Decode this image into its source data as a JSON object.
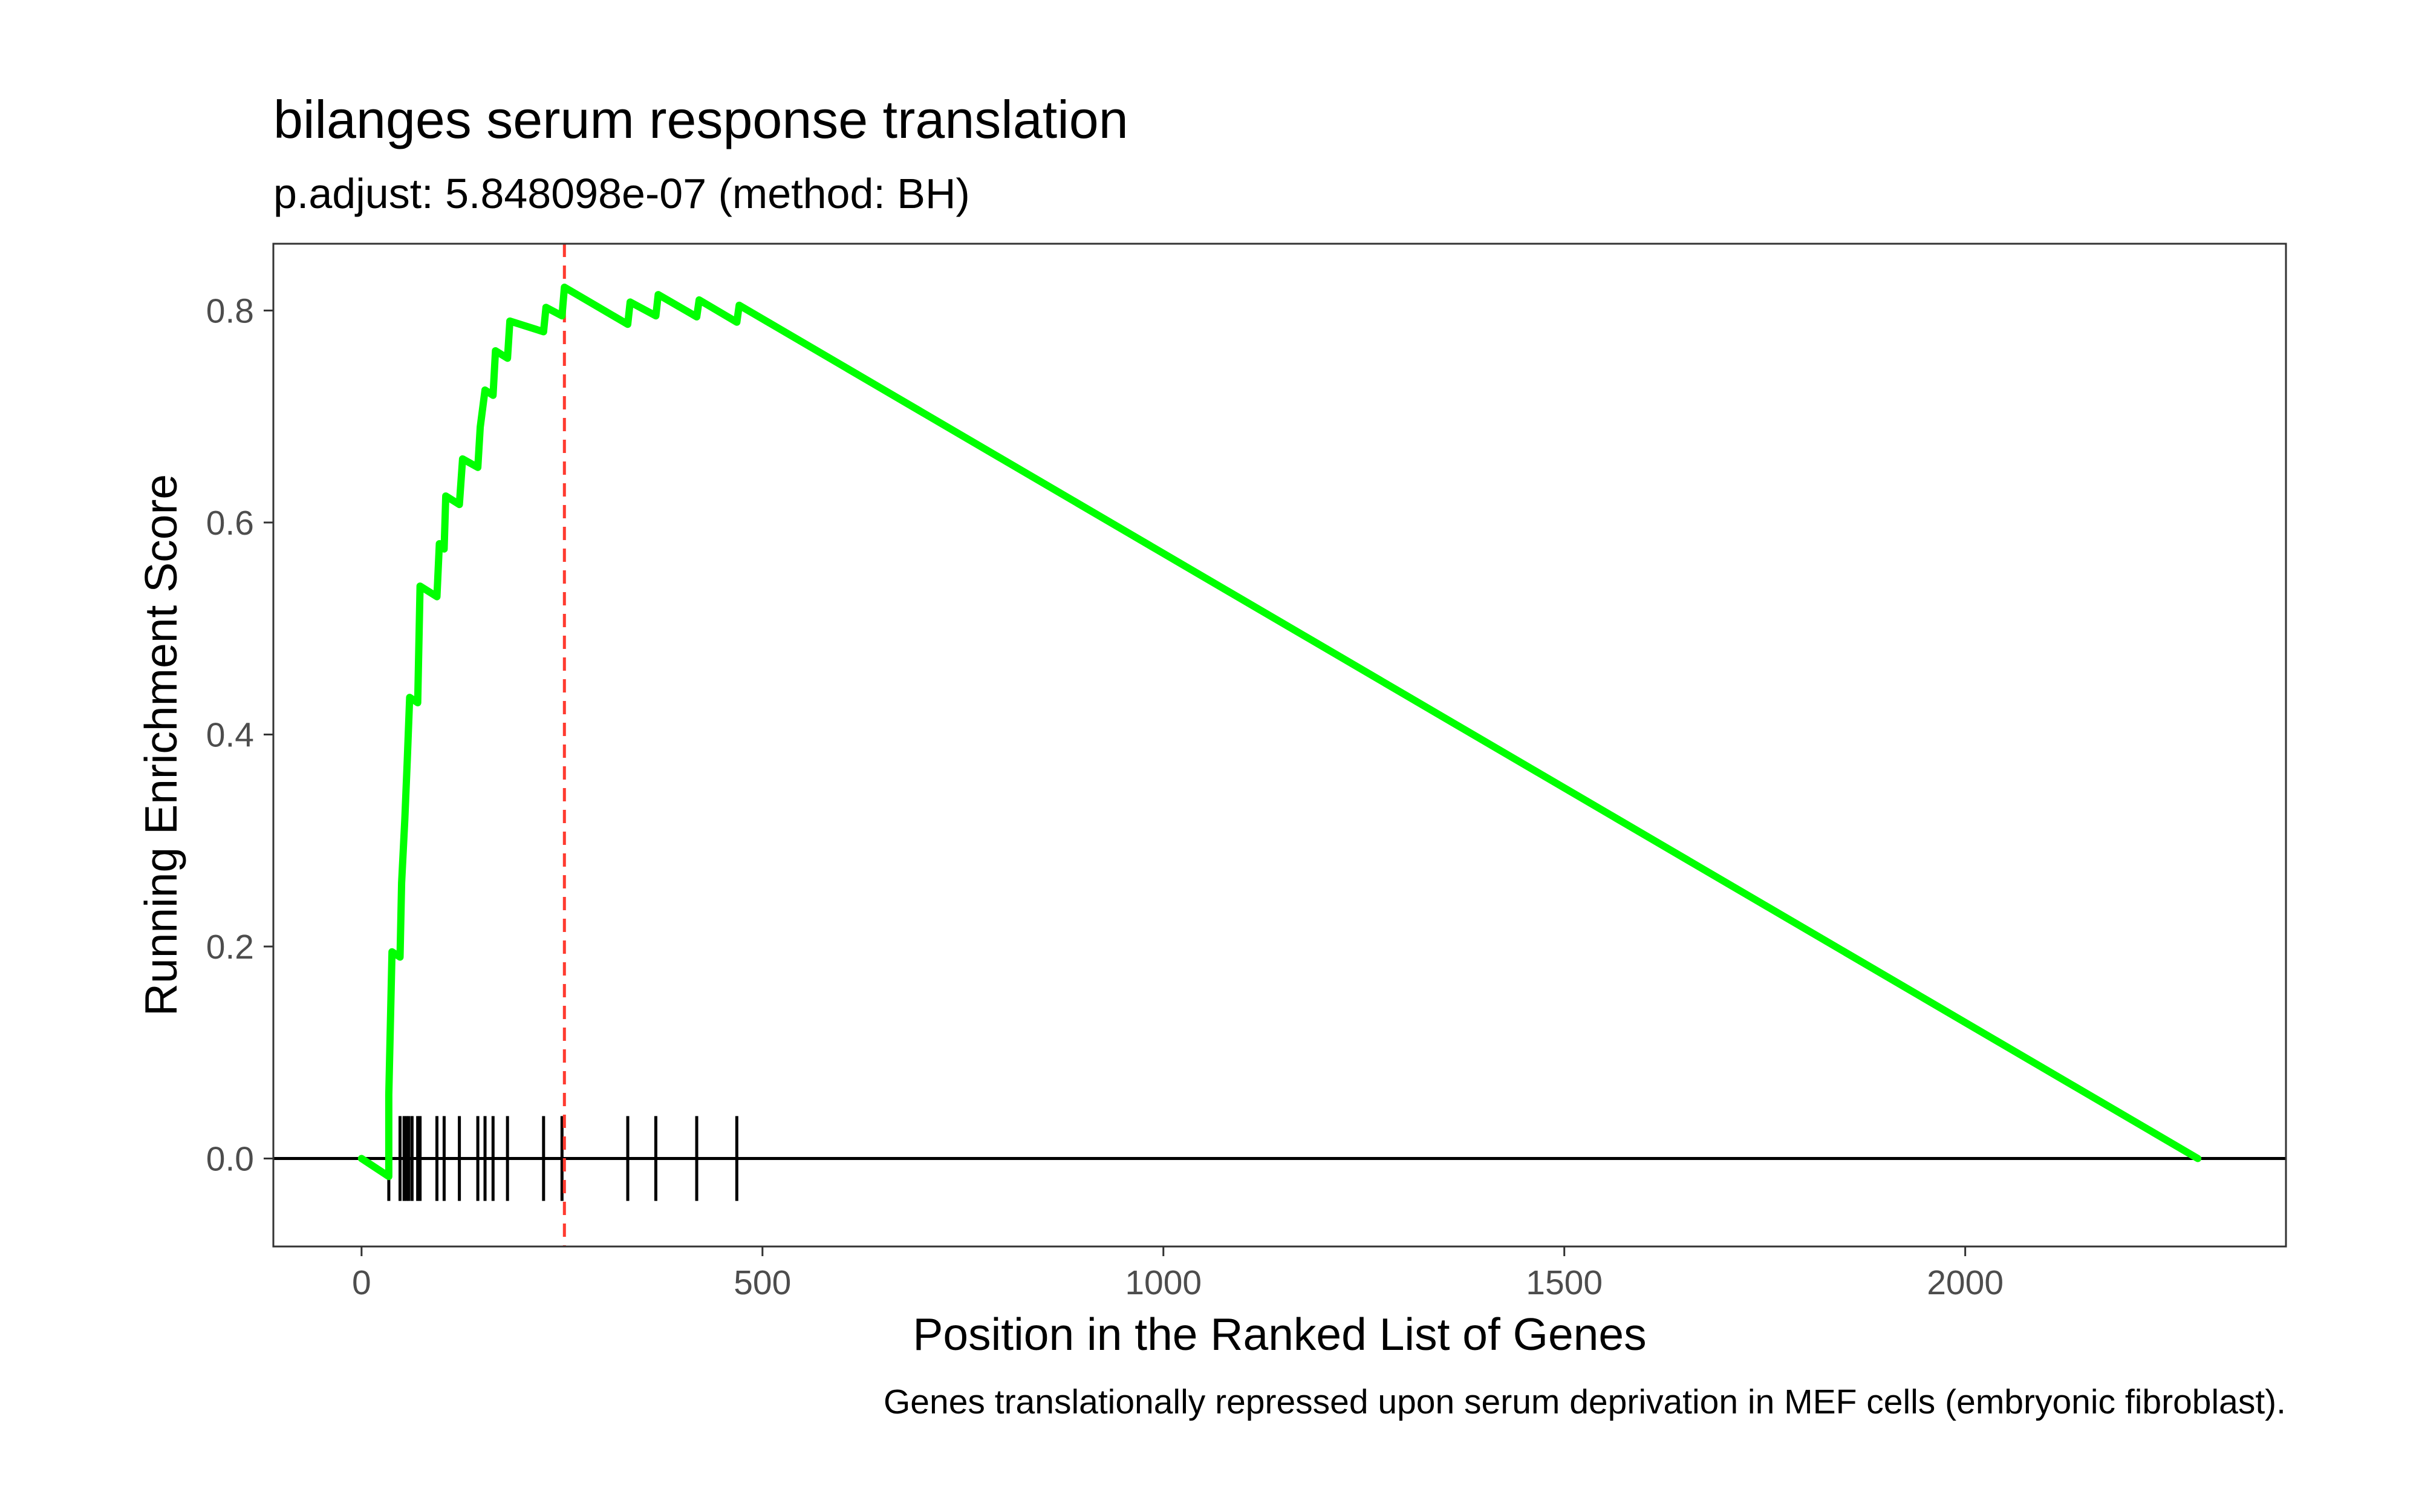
{
  "chart_data": {
    "type": "line",
    "title": "bilanges serum response translation",
    "subtitle": "p.adjust: 5.848098e-07 (method: BH)",
    "caption": "Genes translationally repressed upon serum deprivation in MEF cells (embryonic fibroblast).",
    "xlabel": "Position in the Ranked List of Genes",
    "ylabel": "Running Enrichment Score",
    "xlim": [
      -110,
      2400
    ],
    "ylim": [
      -0.083,
      0.863
    ],
    "x_ticks": [
      0,
      500,
      1000,
      1500,
      2000
    ],
    "y_ticks": [
      0.0,
      0.2,
      0.4,
      0.6,
      0.8
    ],
    "x_tick_labels": [
      "0",
      "500",
      "1000",
      "1500",
      "2000"
    ],
    "y_tick_labels": [
      "0.0",
      "0.2",
      "0.4",
      "0.6",
      "0.8"
    ],
    "grid": false,
    "line_color": "#00ff00",
    "peak_line_color": "#ff3b30",
    "zero_line_color": "#000000",
    "peak_position": 253,
    "series": [
      {
        "values": [
          [
            0,
            0.0
          ],
          [
            34,
            -0.017
          ],
          [
            34,
            0.06
          ],
          [
            38,
            0.195
          ],
          [
            48,
            0.19
          ],
          [
            50,
            0.26
          ],
          [
            54,
            0.32
          ],
          [
            57,
            0.375
          ],
          [
            60,
            0.435
          ],
          [
            70,
            0.43
          ],
          [
            73,
            0.54
          ],
          [
            94,
            0.53
          ],
          [
            97,
            0.58
          ],
          [
            103,
            0.575
          ],
          [
            105,
            0.625
          ],
          [
            122,
            0.617
          ],
          [
            126,
            0.66
          ],
          [
            145,
            0.652
          ],
          [
            148,
            0.69
          ],
          [
            154,
            0.725
          ],
          [
            164,
            0.72
          ],
          [
            167,
            0.762
          ],
          [
            182,
            0.755
          ],
          [
            185,
            0.79
          ],
          [
            227,
            0.78
          ],
          [
            230,
            0.803
          ],
          [
            250,
            0.795
          ],
          [
            253,
            0.822
          ],
          [
            332,
            0.787
          ],
          [
            335,
            0.808
          ],
          [
            367,
            0.795
          ],
          [
            370,
            0.815
          ],
          [
            418,
            0.794
          ],
          [
            421,
            0.81
          ],
          [
            468,
            0.789
          ],
          [
            471,
            0.805
          ],
          [
            2290,
            0.0
          ]
        ]
      }
    ],
    "hit_positions": [
      34,
      48,
      53,
      56,
      59,
      63,
      70,
      73,
      94,
      103,
      122,
      145,
      154,
      164,
      182,
      227,
      250,
      332,
      367,
      418,
      468
    ]
  }
}
